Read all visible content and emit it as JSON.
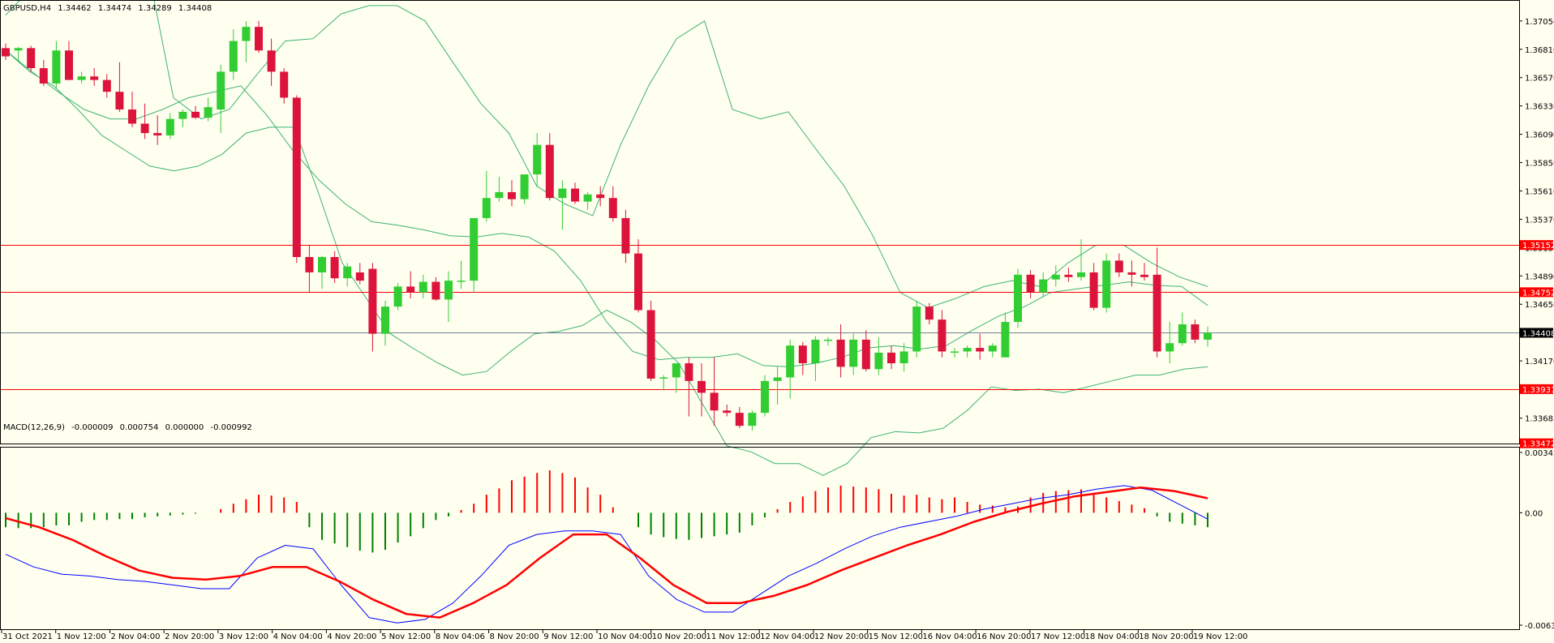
{
  "main_info": {
    "symbol": "GBPUSD,H4",
    "open": "1.34462",
    "high": "1.34474",
    "low": "1.34289",
    "close": "1.34408"
  },
  "macd_info": {
    "label": "MACD(12,26,9)",
    "v1": "-0.000009",
    "v2": "0.000754",
    "v3": "0.000000",
    "v4": "-0.000992"
  },
  "colors": {
    "background": "#fffff0",
    "bull": "#32cd32",
    "bear": "#dc143c",
    "band": "#3cb371",
    "hline": "#ff0000",
    "macd_main": "#0000ff",
    "macd_signal": "#ff0000",
    "hist_pos": "#ff0000",
    "hist_neg": "#008000",
    "axis": "#000000"
  },
  "chart_data": [
    {
      "type": "candlestick",
      "name": "GBPUSD,H4",
      "ylim": [
        1.3347,
        1.372
      ],
      "y_tick_labels": [
        "1.37050",
        "1.36810",
        "1.36570",
        "1.36330",
        "1.36090",
        "1.35850",
        "1.35610",
        "1.35370",
        "1.35130",
        "1.34890",
        "1.34650",
        "1.34410",
        "1.34170",
        "1.33930",
        "1.33685"
      ],
      "x_tick_labels": [
        "31 Oct 2021",
        "1 Nov 12:00",
        "2 Nov 04:00",
        "2 Nov 20:00",
        "3 Nov 12:00",
        "4 Nov 04:00",
        "4 Nov 20:00",
        "5 Nov 12:00",
        "8 Nov 04:06",
        "8 Nov 20:00",
        "9 Nov 12:00",
        "10 Nov 04:00",
        "10 Nov 20:00",
        "11 Nov 12:00",
        "12 Nov 04:00",
        "12 Nov 20:00",
        "15 Nov 12:00",
        "16 Nov 04:00",
        "16 Nov 20:00",
        "17 Nov 12:00",
        "18 Nov 04:00",
        "18 Nov 20:00",
        "19 Nov 12:00"
      ],
      "candles": [
        [
          1.3682,
          1.3686,
          1.3672,
          1.3675
        ],
        [
          1.368,
          1.3683,
          1.367,
          1.3682
        ],
        [
          1.3682,
          1.3684,
          1.3662,
          1.3665
        ],
        [
          1.3665,
          1.3672,
          1.365,
          1.3652
        ],
        [
          1.3652,
          1.3688,
          1.3648,
          1.368
        ],
        [
          1.368,
          1.3688,
          1.3655,
          1.3655
        ],
        [
          1.3655,
          1.3662,
          1.3652,
          1.3658
        ],
        [
          1.3658,
          1.3665,
          1.365,
          1.3655
        ],
        [
          1.3655,
          1.366,
          1.364,
          1.3645
        ],
        [
          1.3645,
          1.367,
          1.3628,
          1.363
        ],
        [
          1.363,
          1.3645,
          1.3615,
          1.3618
        ],
        [
          1.3618,
          1.3635,
          1.3605,
          1.361
        ],
        [
          1.361,
          1.3625,
          1.36,
          1.3608
        ],
        [
          1.3608,
          1.3627,
          1.3605,
          1.3622
        ],
        [
          1.3622,
          1.363,
          1.3615,
          1.3628
        ],
        [
          1.3628,
          1.3633,
          1.3622,
          1.3623
        ],
        [
          1.3623,
          1.364,
          1.362,
          1.3632
        ],
        [
          1.363,
          1.3668,
          1.361,
          1.3662
        ],
        [
          1.3662,
          1.3698,
          1.3655,
          1.3688
        ],
        [
          1.3688,
          1.3705,
          1.367,
          1.37
        ],
        [
          1.37,
          1.3705,
          1.3678,
          1.368
        ],
        [
          1.368,
          1.369,
          1.365,
          1.3662
        ],
        [
          1.3662,
          1.3665,
          1.3635,
          1.364
        ],
        [
          1.364,
          1.3642,
          1.35,
          1.3505
        ],
        [
          1.3505,
          1.3515,
          1.3475,
          1.3492
        ],
        [
          1.3492,
          1.3506,
          1.3478,
          1.3505
        ],
        [
          1.3505,
          1.351,
          1.3483,
          1.3487
        ],
        [
          1.3487,
          1.35,
          1.348,
          1.3497
        ],
        [
          1.3492,
          1.35,
          1.3482,
          1.3485
        ],
        [
          1.3495,
          1.35,
          1.3425,
          1.344
        ],
        [
          1.344,
          1.3468,
          1.343,
          1.3463
        ],
        [
          1.3463,
          1.3483,
          1.346,
          1.348
        ],
        [
          1.348,
          1.3493,
          1.347,
          1.3475
        ],
        [
          1.3475,
          1.349,
          1.347,
          1.3484
        ],
        [
          1.3484,
          1.3488,
          1.3468,
          1.3469
        ],
        [
          1.3469,
          1.3493,
          1.345,
          1.3485
        ],
        [
          1.3485,
          1.3502,
          1.3478,
          1.3485
        ],
        [
          1.3485,
          1.3538,
          1.3475,
          1.3538
        ],
        [
          1.3538,
          1.3578,
          1.3535,
          1.3555
        ],
        [
          1.3555,
          1.3573,
          1.3552,
          1.356
        ],
        [
          1.356,
          1.357,
          1.3548,
          1.3554
        ],
        [
          1.3554,
          1.3575,
          1.355,
          1.3575
        ],
        [
          1.3575,
          1.361,
          1.3565,
          1.36
        ],
        [
          1.36,
          1.361,
          1.3553,
          1.3555
        ],
        [
          1.3555,
          1.357,
          1.3528,
          1.3563
        ],
        [
          1.3563,
          1.3568,
          1.355,
          1.3552
        ],
        [
          1.3552,
          1.356,
          1.3545,
          1.3558
        ],
        [
          1.3558,
          1.3565,
          1.3548,
          1.3555
        ],
        [
          1.3555,
          1.3565,
          1.3535,
          1.3538
        ],
        [
          1.3538,
          1.3545,
          1.35,
          1.3508
        ],
        [
          1.3508,
          1.352,
          1.3458,
          1.346
        ],
        [
          1.346,
          1.3468,
          1.34,
          1.3402
        ],
        [
          1.3402,
          1.3405,
          1.3392,
          1.3403
        ],
        [
          1.3403,
          1.3415,
          1.339,
          1.3415
        ],
        [
          1.3415,
          1.342,
          1.337,
          1.34
        ],
        [
          1.34,
          1.3415,
          1.337,
          1.339
        ],
        [
          1.339,
          1.342,
          1.3362,
          1.3375
        ],
        [
          1.3375,
          1.338,
          1.337,
          1.3373
        ],
        [
          1.3373,
          1.3378,
          1.336,
          1.3362
        ],
        [
          1.3362,
          1.3375,
          1.3358,
          1.3373
        ],
        [
          1.3373,
          1.3405,
          1.337,
          1.34
        ],
        [
          1.34,
          1.3412,
          1.338,
          1.3403
        ],
        [
          1.3403,
          1.3435,
          1.3385,
          1.343
        ],
        [
          1.343,
          1.3433,
          1.3405,
          1.3415
        ],
        [
          1.3415,
          1.3438,
          1.34,
          1.3435
        ],
        [
          1.3435,
          1.3437,
          1.343,
          1.3435
        ],
        [
          1.3435,
          1.3448,
          1.3403,
          1.3412
        ],
        [
          1.3412,
          1.344,
          1.3405,
          1.3435
        ],
        [
          1.3435,
          1.3443,
          1.3408,
          1.341
        ],
        [
          1.341,
          1.3437,
          1.3405,
          1.3424
        ],
        [
          1.3424,
          1.343,
          1.341,
          1.3415
        ],
        [
          1.3415,
          1.3432,
          1.3408,
          1.3425
        ],
        [
          1.3425,
          1.3468,
          1.342,
          1.3463
        ],
        [
          1.3463,
          1.3466,
          1.3448,
          1.3452
        ],
        [
          1.3452,
          1.346,
          1.342,
          1.3425
        ],
        [
          1.3425,
          1.3428,
          1.342,
          1.3425
        ],
        [
          1.3425,
          1.343,
          1.342,
          1.3428
        ],
        [
          1.3428,
          1.344,
          1.3418,
          1.3425
        ],
        [
          1.3425,
          1.3432,
          1.342,
          1.343
        ],
        [
          1.342,
          1.3458,
          1.342,
          1.345
        ],
        [
          1.345,
          1.3495,
          1.3445,
          1.349
        ],
        [
          1.349,
          1.3494,
          1.347,
          1.3475
        ],
        [
          1.3475,
          1.3492,
          1.3471,
          1.3486
        ],
        [
          1.3486,
          1.3498,
          1.348,
          1.349
        ],
        [
          1.349,
          1.3496,
          1.3484,
          1.3488
        ],
        [
          1.3488,
          1.352,
          1.3485,
          1.3492
        ],
        [
          1.3492,
          1.35,
          1.346,
          1.3462
        ],
        [
          1.3462,
          1.3508,
          1.3458,
          1.3502
        ],
        [
          1.3502,
          1.3508,
          1.3488,
          1.3492
        ],
        [
          1.3492,
          1.3502,
          1.348,
          1.349
        ],
        [
          1.349,
          1.35,
          1.3485,
          1.3488
        ],
        [
          1.349,
          1.3513,
          1.342,
          1.3425
        ],
        [
          1.3425,
          1.345,
          1.3415,
          1.3432
        ],
        [
          1.3432,
          1.3458,
          1.343,
          1.3448
        ],
        [
          1.3448,
          1.3452,
          1.3432,
          1.3435
        ],
        [
          1.3435,
          1.3446,
          1.3429,
          1.3441
        ]
      ],
      "upper_band": [
        1.371,
        1.3735,
        1.3765,
        1.378,
        1.377,
        1.376,
        1.364,
        1.3622,
        1.363,
        1.366,
        1.3688,
        1.369,
        1.3711,
        1.3718,
        1.3718,
        1.3705,
        1.367,
        1.3635,
        1.361,
        1.3565,
        1.355,
        1.354,
        1.36,
        1.365,
        1.369,
        1.3705,
        1.363,
        1.3622,
        1.3628,
        1.3596,
        1.3565,
        1.3524,
        1.3475,
        1.3462,
        1.347,
        1.348,
        1.3485,
        1.348,
        1.35,
        1.3515,
        1.3515,
        1.35,
        1.3488,
        1.348
      ],
      "middle_band": [
        1.368,
        1.3662,
        1.3645,
        1.363,
        1.3622,
        1.3622,
        1.363,
        1.364,
        1.3645,
        1.365,
        1.3625,
        1.3595,
        1.357,
        1.355,
        1.3535,
        1.3532,
        1.3528,
        1.3523,
        1.3522,
        1.3525,
        1.3522,
        1.351,
        1.3485,
        1.345,
        1.3425,
        1.3418,
        1.342,
        1.342,
        1.3423,
        1.3413,
        1.3412,
        1.3415,
        1.342,
        1.3428,
        1.343,
        1.3427,
        1.343,
        1.3443,
        1.3455,
        1.3463,
        1.3475,
        1.3478,
        1.3481,
        1.3484,
        1.3481,
        1.348,
        1.3464
      ],
      "lower_band": [
        1.368,
        1.3662,
        1.365,
        1.363,
        1.3608,
        1.3595,
        1.3582,
        1.3578,
        1.3582,
        1.3592,
        1.361,
        1.3615,
        1.3615,
        1.356,
        1.35,
        1.347,
        1.344,
        1.3427,
        1.3415,
        1.3405,
        1.3408,
        1.3425,
        1.344,
        1.3442,
        1.3447,
        1.346,
        1.345,
        1.3435,
        1.3415,
        1.338,
        1.3345,
        1.334,
        1.333,
        1.333,
        1.332,
        1.333,
        1.3352,
        1.3357,
        1.3356,
        1.336,
        1.3375,
        1.3395,
        1.3392,
        1.3393,
        1.339,
        1.3395,
        1.34,
        1.3405,
        1.3405,
        1.341,
        1.3412
      ],
      "horizontal_levels": [
        {
          "value": 1.35152,
          "label": "1.35152"
        },
        {
          "value": 1.34752,
          "label": "1.34752"
        },
        {
          "value": 1.33931,
          "label": "1.33931"
        },
        {
          "value": 1.33472,
          "label": "1.33472"
        }
      ],
      "grey_level": 1.34408,
      "current_price_label": "1.34408"
    },
    {
      "type": "macd",
      "name": "MACD(12,26,9)",
      "ylim": [
        -0.00631,
        0.003427
      ],
      "y_tick_labels": [
        "0.003427",
        "0.00",
        "-0.00631"
      ],
      "histogram": [
        -0.0008,
        -0.00085,
        -0.00085,
        -0.0008,
        -0.0007,
        -0.0007,
        -0.0005,
        -0.0004,
        -0.0004,
        -0.00035,
        -0.00035,
        -0.00025,
        -0.0002,
        -0.00015,
        -0.0001,
        -5e-05,
        0,
        0.0002,
        0.0005,
        0.00075,
        0.001,
        0.00095,
        0.00085,
        0.0006,
        -0.0008,
        -0.0015,
        -0.0017,
        -0.0019,
        -0.0021,
        -0.0022,
        -0.00205,
        -0.00165,
        -0.0013,
        -0.00085,
        -0.0004,
        -0.0002,
        0.00015,
        0.0005,
        0.001,
        0.00135,
        0.0018,
        0.002,
        0.0022,
        0.00235,
        0.0022,
        0.00195,
        0.0014,
        0.001,
        0.0003,
        0,
        -0.0008,
        -0.0012,
        -0.00135,
        -0.00145,
        -0.0015,
        -0.0014,
        -0.0013,
        -0.0012,
        -0.0011,
        -0.0007,
        -0.00025,
        0.0002,
        0.0006,
        0.0009,
        0.0012,
        0.0014,
        0.0015,
        0.00145,
        0.0014,
        0.0013,
        0.00105,
        0.00095,
        0.001,
        0.00085,
        0.00075,
        0.00085,
        0.0006,
        0.00045,
        0.0004,
        0.0003,
        0.00035,
        0.00085,
        0.0011,
        0.0012,
        0.00125,
        0.0013,
        0.0011,
        0.00085,
        0.00065,
        0.00045,
        0.00025,
        -0.0002,
        -0.0005,
        -0.0006,
        -0.0007,
        -0.0008
      ],
      "main_line": [
        -0.0023,
        -0.003,
        -0.0034,
        -0.0035,
        -0.0037,
        -0.0038,
        -0.004,
        -0.0042,
        -0.0042,
        -0.0025,
        -0.0018,
        -0.002,
        -0.004,
        -0.0058,
        -0.0061,
        -0.0059,
        -0.005,
        -0.0035,
        -0.0018,
        -0.0012,
        -0.001,
        -0.001,
        -0.0012,
        -0.0035,
        -0.0048,
        -0.0055,
        -0.0055,
        -0.0045,
        -0.0035,
        -0.0028,
        -0.002,
        -0.0013,
        -0.0008,
        -0.0005,
        -0.0002,
        0.0002,
        0.0005,
        0.0008,
        0.001,
        0.0013,
        0.0015,
        0.00125,
        0.00045,
        -0.00035
      ],
      "signal_line": [
        -0.0003,
        -0.0008,
        -0.0015,
        -0.0024,
        -0.0032,
        -0.0036,
        -0.0037,
        -0.0035,
        -0.003,
        -0.003,
        -0.0038,
        -0.0048,
        -0.0056,
        -0.0058,
        -0.005,
        -0.004,
        -0.0025,
        -0.0012,
        -0.0012,
        -0.0025,
        -0.004,
        -0.005,
        -0.005,
        -0.0046,
        -0.004,
        -0.0032,
        -0.0025,
        -0.0018,
        -0.0012,
        -0.0005,
        5e-05,
        0.0005,
        0.0009,
        0.00115,
        0.0014,
        0.0012,
        0.0008
      ]
    }
  ]
}
